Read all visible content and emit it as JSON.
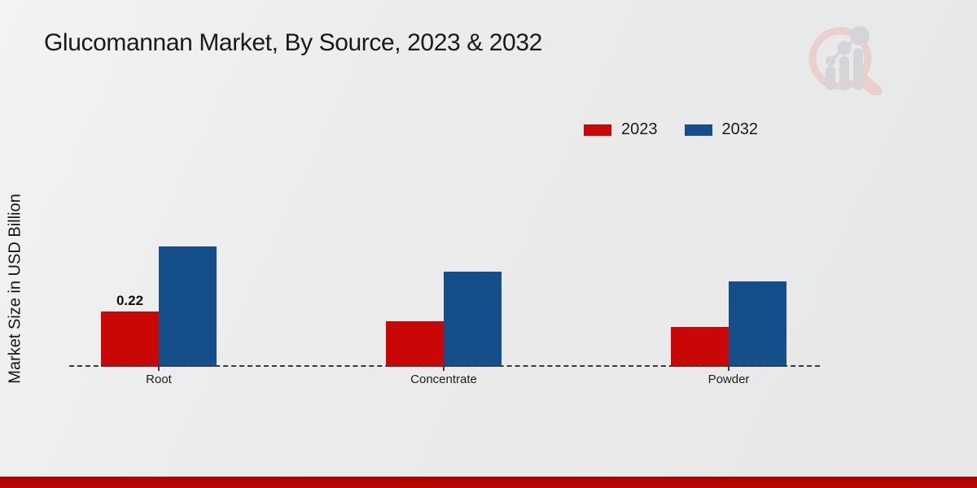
{
  "header": {
    "title": "Glucomannan Market, By Source, 2023 & 2032"
  },
  "icons": {
    "watermark": "magnifier-bar-chart-watermark"
  },
  "colors": {
    "series_2023": "#c90707",
    "series_2032": "#144f8c",
    "axis_line": "#3b3b3b",
    "footer_bar": "#b90702",
    "watermark_pink": "#eacfcf",
    "watermark_gray": "#d5d5d9"
  },
  "chart_data": {
    "type": "bar",
    "title": "Glucomannan Market, By Source, 2023 & 2032",
    "xlabel": "",
    "ylabel": "Market Size in USD Billion",
    "categories": [
      "Root",
      "Concentrate",
      "Powder"
    ],
    "series": [
      {
        "name": "2023",
        "color": "#c90707",
        "values": [
          0.22,
          0.18,
          0.16
        ]
      },
      {
        "name": "2032",
        "color": "#144f8c",
        "values": [
          0.48,
          0.38,
          0.34
        ]
      }
    ],
    "annotations": [
      {
        "series": "2023",
        "category": "Root",
        "text": "0.22"
      }
    ],
    "ylim": [
      0,
      0.52
    ],
    "grid": false,
    "legend_position": "top-right",
    "baseline_style": "dashed"
  }
}
